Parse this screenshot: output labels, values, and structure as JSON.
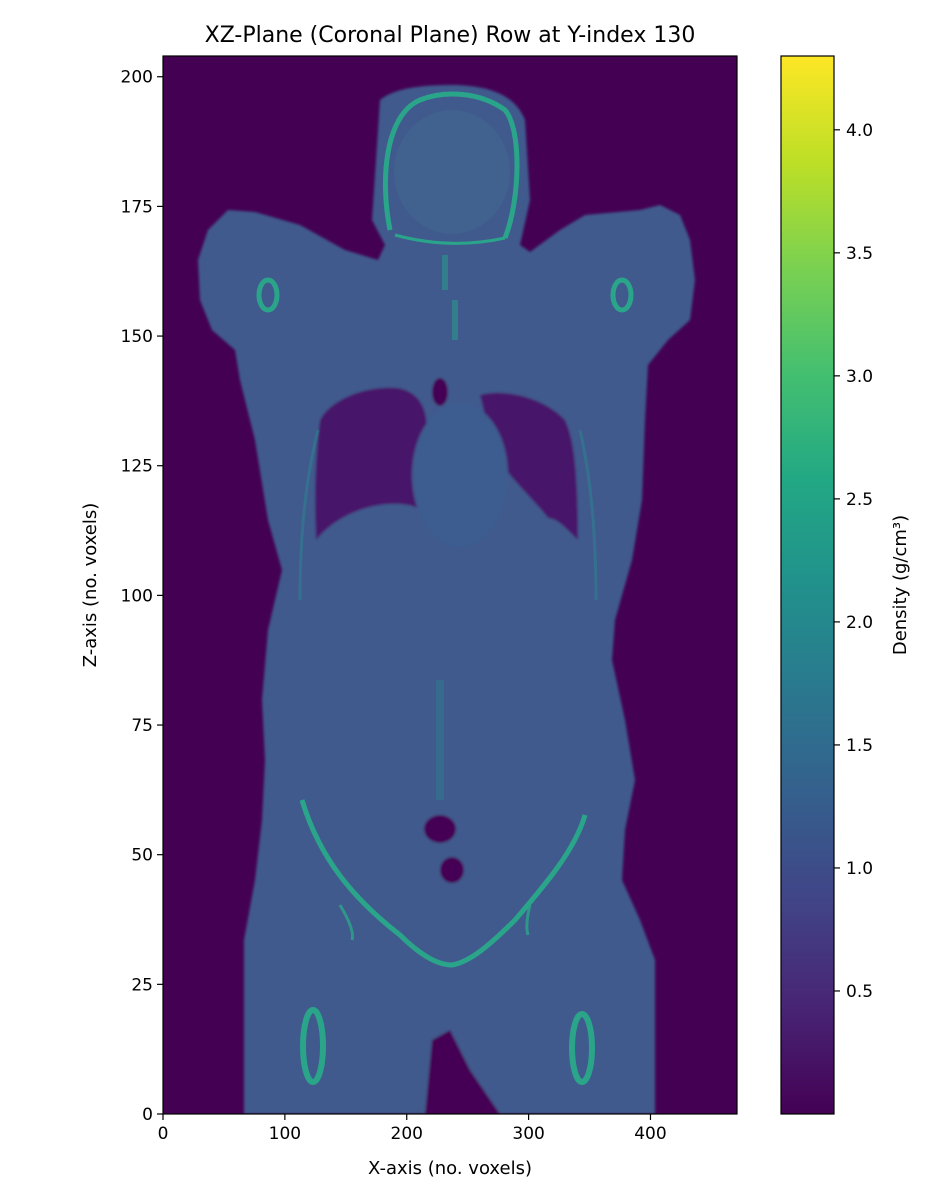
{
  "chart_data": {
    "type": "heatmap",
    "title": "XZ-Plane (Coronal Plane) Row at Y-index 130",
    "xlabel": "X-axis (no. voxels)",
    "ylabel": "Z-axis (no. voxels)",
    "xlim": [
      0,
      471
    ],
    "ylim": [
      0,
      204
    ],
    "x_ticks": [
      0,
      100,
      200,
      300,
      400
    ],
    "y_ticks": [
      0,
      25,
      50,
      75,
      100,
      125,
      150,
      175,
      200
    ],
    "colormap": "viridis",
    "colorbar": {
      "label": "Density (g/cm³)",
      "range": [
        0.0,
        4.3
      ],
      "ticks": [
        "0.5",
        "1.0",
        "1.5",
        "2.0",
        "2.5",
        "3.0",
        "3.5",
        "4.0"
      ]
    },
    "image": {
      "description": "CT density coronal slice of a human body (head, arms raised, thorax, abdomen, pelvis, upper thighs)",
      "background_density": 0.0,
      "soft_tissue_density": 1.0,
      "lung_density": 0.3,
      "bone_density": 2.7
    },
    "grid": false
  },
  "colors": {
    "viridis_low": "#440154",
    "viridis_mid": "#21918c",
    "viridis_high": "#fde725",
    "tissue": "#3f5a8e",
    "lung": "#46196a",
    "bone": "#2aa58a"
  }
}
